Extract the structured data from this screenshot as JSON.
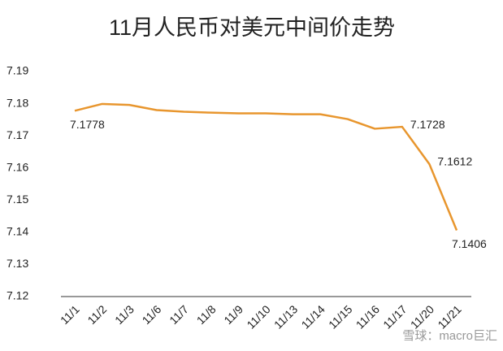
{
  "chart_data": {
    "type": "line",
    "title": "11月人民币对美元中间价走势",
    "categories": [
      "11/1",
      "11/2",
      "11/3",
      "11/6",
      "11/7",
      "11/8",
      "11/9",
      "11/10",
      "11/13",
      "11/14",
      "11/15",
      "11/16",
      "11/17",
      "11/20",
      "11/21"
    ],
    "series": [
      {
        "name": "中间价",
        "color": "#e8962e",
        "values": [
          7.1778,
          7.1799,
          7.1796,
          7.178,
          7.1775,
          7.1772,
          7.177,
          7.177,
          7.1767,
          7.1767,
          7.1752,
          7.1722,
          7.1728,
          7.1612,
          7.1406
        ],
        "value_labels": [
          "7.1778",
          null,
          null,
          null,
          null,
          null,
          null,
          null,
          null,
          null,
          null,
          null,
          "7.1728",
          "7.1612",
          "7.1406"
        ]
      }
    ],
    "ylim": [
      7.12,
      7.19
    ],
    "yticks": [
      7.12,
      7.13,
      7.14,
      7.15,
      7.16,
      7.17,
      7.18,
      7.19
    ],
    "watermark": "雪球：macro巨汇"
  }
}
